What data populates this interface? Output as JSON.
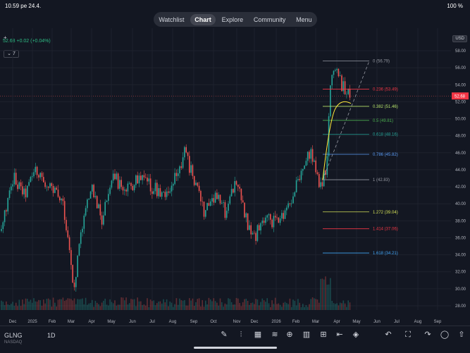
{
  "status": {
    "time": "10.59",
    "date": "pe 24.4.",
    "battery": "100 %"
  },
  "nav": {
    "tabs": [
      "Watchlist",
      "Chart",
      "Explore",
      "Community",
      "Menu"
    ],
    "active": "Chart"
  },
  "ticker": {
    "price": "52.68",
    "change": "+0.02 (+0.04%)"
  },
  "expander_label": "7",
  "currency": "USD",
  "price_axis": {
    "labels": [
      "58.00",
      "56.00",
      "54.00",
      "52.00",
      "50.00",
      "48.00",
      "46.00",
      "44.00",
      "42.00",
      "40.00",
      "38.00",
      "36.00",
      "34.00",
      "32.00",
      "30.00",
      "28.00"
    ],
    "last_price": "52.68"
  },
  "time_axis": {
    "labels": [
      "Dec",
      "2025",
      "Feb",
      "Mar",
      "Apr",
      "May",
      "Jun",
      "Jul",
      "Aug",
      "Sep",
      "Oct",
      "Nov",
      "Dec",
      "2026",
      "Feb",
      "Mar",
      "Apr",
      "May",
      "Jun",
      "Jul",
      "Aug",
      "Sep"
    ]
  },
  "fib": [
    {
      "label": "0 (56.79)",
      "color": "#9598a1"
    },
    {
      "label": "0.236 (53.49)",
      "color": "#f23645"
    },
    {
      "label": "0.382 (51.46)",
      "color": "#b6e36b"
    },
    {
      "label": "0.5 (49.81)",
      "color": "#4caf50"
    },
    {
      "label": "0.618 (48.16)",
      "color": "#26a69a"
    },
    {
      "label": "0.786 (45.82)",
      "color": "#5b9cf6"
    },
    {
      "label": "1 (42.83)",
      "color": "#9598a1"
    },
    {
      "label": "1.272 (39.04)",
      "color": "#d4e157"
    },
    {
      "label": "1.414 (37.06)",
      "color": "#f23645"
    },
    {
      "label": "1.618 (34.21)",
      "color": "#42a5f5"
    }
  ],
  "bottombar": {
    "symbol": "GLNG",
    "exchange": "NASDAQ",
    "timeframe": "1D"
  },
  "colors": {
    "up": "#26a69a",
    "down": "#ef5350",
    "background": "#131722"
  }
}
